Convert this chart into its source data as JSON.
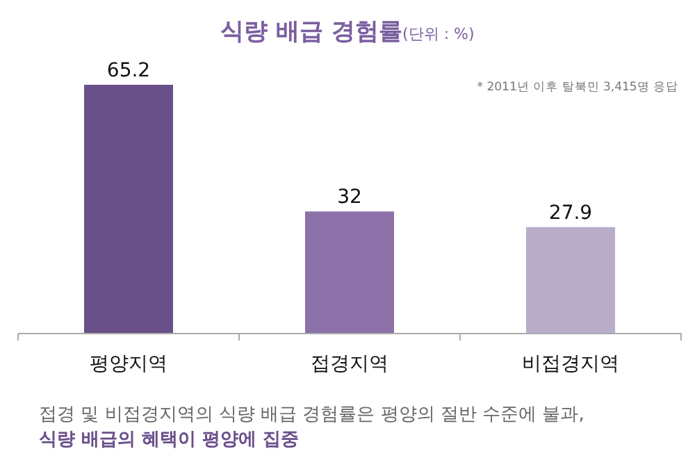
{
  "chart_data": {
    "type": "bar",
    "title": "식량 배급 경험률",
    "subtitle": "(단위 : %)",
    "categories": [
      "평양지역",
      "접경지역",
      "비접경지역"
    ],
    "values": [
      65.2,
      32,
      27.9
    ],
    "colors": [
      "#6a5088",
      "#8c72a9",
      "#b8adc9"
    ],
    "data_labels": true,
    "annotations": [
      "* 2011년 이후 탈북민 3,415명 응답",
      "접경 및 비접경지역의 식량 배급 경험률은 평양의 절반 수준에 불과,",
      "식량 배급의 혜택이 평양에 집중"
    ]
  }
}
